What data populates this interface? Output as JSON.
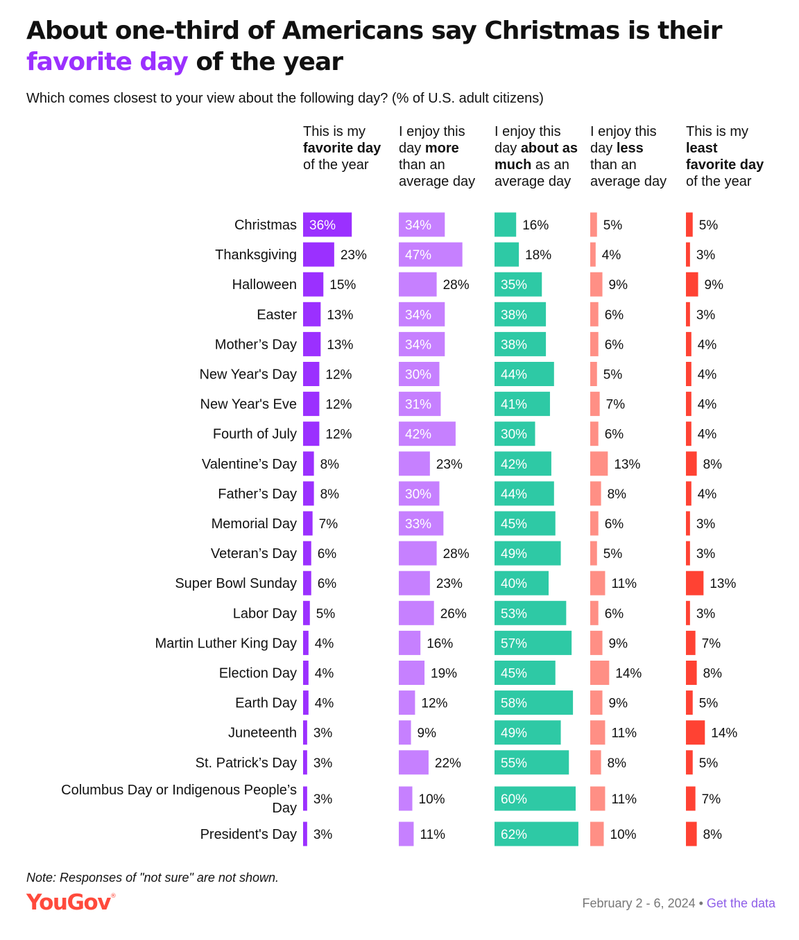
{
  "title": {
    "line1": "About one-third of Americans say Christmas is their",
    "highlight": "favorite day",
    "line2_rest": " of the year"
  },
  "subtitle": "Which comes closest to your view about the following day? (% of U.S. adult citizens)",
  "column_headers": [
    {
      "pre": "This is my",
      "bold": "favorite day",
      "post": "of the year"
    },
    {
      "pre": "I enjoy this day",
      "bold": "more",
      "post": "than an average day"
    },
    {
      "pre": "I enjoy this day",
      "bold": "about as much",
      "post": "as an average day"
    },
    {
      "pre": "I enjoy this day",
      "bold": "less",
      "post": "than an average day"
    },
    {
      "pre": "This is my",
      "bold": "least favorite day",
      "post": "of the year"
    }
  ],
  "colors": {
    "favorite": "#9b30ff",
    "more": "#c680ff",
    "about_as_much": "#2ec9a5",
    "less": "#ff8f85",
    "least_favorite": "#ff4233"
  },
  "chart_data": {
    "type": "bar",
    "orientation": "horizontal",
    "title": "About one-third of Americans say Christmas is their favorite day of the year",
    "unit": "%",
    "categories": [
      "Christmas",
      "Thanksgiving",
      "Halloween",
      "Easter",
      "Mother’s Day",
      "New Year's Day",
      "New Year's Eve",
      "Fourth of July",
      "Valentine’s Day",
      "Father’s Day",
      "Memorial Day",
      "Veteran’s Day",
      "Super Bowl Sunday",
      "Labor Day",
      "Martin Luther King Day",
      "Election Day",
      "Earth Day",
      "Juneteenth",
      "St. Patrick’s Day",
      "Columbus Day or Indigenous People’s Day",
      "President's Day"
    ],
    "series": [
      {
        "name": "This is my favorite day of the year",
        "values": [
          36,
          23,
          15,
          13,
          13,
          12,
          12,
          12,
          8,
          8,
          7,
          6,
          6,
          5,
          4,
          4,
          4,
          3,
          3,
          3,
          3
        ]
      },
      {
        "name": "I enjoy this day more than an average day",
        "values": [
          34,
          47,
          28,
          34,
          34,
          30,
          31,
          42,
          23,
          30,
          33,
          28,
          23,
          26,
          16,
          19,
          12,
          9,
          22,
          10,
          11
        ]
      },
      {
        "name": "I enjoy this day about as much as an average day",
        "values": [
          16,
          18,
          35,
          38,
          38,
          44,
          41,
          30,
          42,
          44,
          45,
          49,
          40,
          53,
          57,
          45,
          58,
          49,
          55,
          60,
          62
        ]
      },
      {
        "name": "I enjoy this day less than an average day",
        "values": [
          5,
          4,
          9,
          6,
          6,
          5,
          7,
          6,
          13,
          8,
          6,
          5,
          11,
          6,
          9,
          14,
          9,
          11,
          8,
          11,
          10
        ]
      },
      {
        "name": "This is my least favorite day of the year",
        "values": [
          5,
          3,
          9,
          3,
          4,
          4,
          4,
          4,
          8,
          4,
          3,
          3,
          13,
          3,
          7,
          8,
          5,
          14,
          5,
          7,
          8
        ]
      }
    ],
    "label_format": "{v}%"
  },
  "note": "Note: Responses of \"not sure\" are not shown.",
  "brand": "YouGov",
  "footer": {
    "dates": "February 2 - 6, 2024",
    "separator": " • ",
    "link": "Get the data"
  }
}
